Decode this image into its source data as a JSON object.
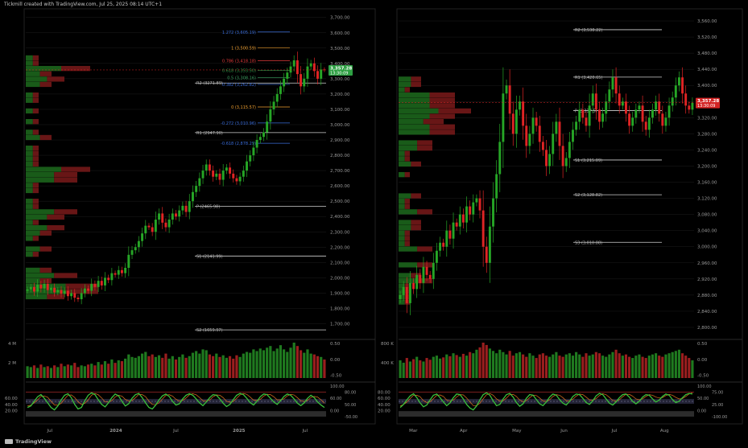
{
  "header": {
    "text": "Tickmill created with TradingView.com, Jul 25, 2025 08:14 UTC+1"
  },
  "footer": {
    "brand": "TradingView"
  },
  "colors": {
    "bg": "#000000",
    "up": "#26a626",
    "down": "#e02424",
    "grid": "#1c1c1c",
    "axis_text": "#9a9a9a"
  },
  "chart_data": [
    {
      "type": "candlestick",
      "timeframe": "weekly",
      "x_ticks": [
        "Jul",
        "2024",
        "Jul",
        "2025",
        "Jul"
      ],
      "price_ticks": [
        "3,700.00",
        "3,600.00",
        "3,500.00",
        "3,400.00",
        "3,300.00",
        "3,200.00",
        "3,100.00",
        "3,000.00",
        "2,900.00",
        "2,800.00",
        "2,700.00",
        "2,600.00",
        "2,500.00",
        "2,400.00",
        "2,300.00",
        "2,200.00",
        "2,100.00",
        "2,000.00",
        "1,900.00",
        "1,800.00",
        "1,700.00"
      ],
      "ylim": [
        1650,
        3730
      ],
      "last_price": {
        "value": "3,357.28",
        "countdown": "13:30:09"
      },
      "closes": [
        1925,
        1940,
        1910,
        1955,
        1930,
        1960,
        1920,
        1935,
        1905,
        1920,
        1895,
        1915,
        1880,
        1900,
        1870,
        1860,
        1900,
        1930,
        1915,
        1960,
        1940,
        1980,
        1950,
        2000,
        1985,
        2030,
        2020,
        2050,
        2030,
        2065,
        2150,
        2180,
        2200,
        2240,
        2290,
        2340,
        2330,
        2300,
        2380,
        2420,
        2360,
        2330,
        2380,
        2420,
        2400,
        2440,
        2470,
        2430,
        2500,
        2560,
        2600,
        2650,
        2700,
        2740,
        2700,
        2660,
        2680,
        2640,
        2700,
        2720,
        2680,
        2650,
        2630,
        2660,
        2700,
        2760,
        2800,
        2850,
        2900,
        2920,
        2950,
        3020,
        3100,
        3150,
        3200,
        3250,
        3300,
        3340,
        3380,
        3420,
        3330,
        3250,
        3300,
        3380,
        3400,
        3350,
        3300,
        3360,
        3357
      ],
      "pivots": [
        {
          "label": "R2 (3271.89)",
          "value": 3271.89
        },
        {
          "label": "R1 (2947.90)",
          "value": 2947.9
        },
        {
          "label": "P (2465.98)",
          "value": 2465.98
        },
        {
          "label": "S1 (2141.99)",
          "value": 2141.99
        },
        {
          "label": "S2 (1659.97)",
          "value": 1659.97
        }
      ],
      "fib_levels": [
        {
          "label": "1.272 (3,605.19)",
          "value": 3605.19,
          "color": "#3a6cd8"
        },
        {
          "label": "1 (3,500.59)",
          "value": 3500.59,
          "color": "#f0a030"
        },
        {
          "label": "0.786 (3,418.18)",
          "value": 3418.18,
          "color": "#e03a3a"
        },
        {
          "label": "0.618 (3,353.50)",
          "value": 3353.5,
          "color": "#2b9a4a"
        },
        {
          "label": "0.5 (3,308.16)",
          "value": 3308.16,
          "color": "#3aa060"
        },
        {
          "label": "0.382 (3,262.82)",
          "value": 3262.82,
          "color": "#3a6cd8"
        },
        {
          "label": "0 (3,115.57)",
          "value": 3115.57,
          "color": "#f0a030"
        },
        {
          "label": "-0.272 (3,010.96)",
          "value": 3010.96,
          "color": "#3a6cd8"
        },
        {
          "label": "-0.618 (2,878.29)",
          "value": 2878.29,
          "color": "#3a6cd8"
        }
      ],
      "volume_ticks": [
        "4 M",
        "2 M"
      ],
      "volume_right_ticks": [
        "0.50",
        "0.00",
        "-0.50"
      ],
      "volume": [
        1.4,
        1.3,
        1.5,
        1.2,
        1.6,
        1.3,
        1.4,
        1.2,
        1.5,
        1.3,
        1.7,
        1.4,
        1.6,
        1.5,
        1.8,
        1.3,
        1.5,
        1.4,
        1.6,
        1.7,
        1.5,
        1.9,
        1.6,
        2.0,
        1.7,
        2.2,
        1.8,
        2.1,
        2.0,
        2.3,
        2.8,
        2.5,
        2.4,
        2.6,
        2.9,
        3.1,
        2.6,
        2.8,
        2.5,
        2.7,
        2.4,
        2.9,
        2.3,
        2.6,
        2.2,
        2.5,
        2.8,
        2.4,
        2.6,
        3.0,
        3.2,
        2.9,
        3.4,
        3.3,
        2.8,
        2.6,
        2.9,
        2.5,
        2.7,
        2.4,
        2.6,
        2.3,
        2.7,
        2.5,
        2.9,
        3.1,
        3.0,
        3.4,
        3.2,
        3.5,
        3.3,
        3.6,
        3.8,
        3.2,
        3.5,
        3.9,
        3.4,
        3.1,
        3.6,
        4.2,
        3.8,
        3.3,
        3.0,
        3.4,
        2.9,
        2.8,
        2.6,
        2.5,
        2.2
      ],
      "osc_left_ticks": [
        "60.00",
        "40.00",
        "20.00"
      ],
      "osc_right_ticks": [
        "100.00",
        "80.00",
        "60.00",
        "50.00",
        "0.00",
        "-50.00"
      ],
      "osc": [
        30,
        35,
        50,
        65,
        72,
        60,
        45,
        30,
        22,
        35,
        55,
        70,
        75,
        62,
        40,
        25,
        30,
        52,
        70,
        78,
        72,
        55,
        40,
        32,
        45,
        62,
        74,
        68,
        50,
        35,
        42,
        60,
        72,
        76,
        62,
        45,
        30,
        25,
        38,
        55,
        68,
        74,
        66,
        50,
        38,
        42,
        58,
        70,
        75,
        70,
        58,
        45,
        36,
        48,
        62,
        72,
        70,
        58,
        44,
        33,
        40,
        56,
        70,
        76,
        72,
        60,
        46,
        38,
        50,
        65,
        74,
        72,
        60,
        48,
        40,
        52,
        66,
        74,
        70,
        58,
        44,
        36,
        45,
        60,
        70,
        62,
        48,
        38,
        30
      ]
    },
    {
      "type": "candlestick",
      "timeframe": "daily",
      "x_ticks": [
        "Mar",
        "Apr",
        "May",
        "Jun",
        "Jul",
        "Aug"
      ],
      "price_ticks": [
        "3,560.00",
        "3,520.00",
        "3,480.00",
        "3,440.00",
        "3,400.00",
        "3,360.00",
        "3,320.00",
        "3,280.00",
        "3,240.00",
        "3,200.00",
        "3,160.00",
        "3,120.00",
        "3,080.00",
        "3,040.00",
        "3,000.00",
        "2,960.00",
        "2,920.00",
        "2,880.00",
        "2,840.00",
        "2,800.00"
      ],
      "ylim": [
        2790,
        3580
      ],
      "last_price": {
        "value": "3,357.28",
        "countdown": "13:30:09"
      },
      "closes": [
        2880,
        2900,
        2860,
        2910,
        2895,
        2930,
        2910,
        2950,
        2930,
        2920,
        2960,
        2990,
        3010,
        3000,
        3040,
        3020,
        3060,
        3050,
        3080,
        3060,
        3100,
        3080,
        3110,
        3120,
        3090,
        3000,
        2960,
        3050,
        3120,
        3180,
        3260,
        3380,
        3400,
        3330,
        3280,
        3340,
        3360,
        3300,
        3250,
        3280,
        3320,
        3300,
        3260,
        3240,
        3200,
        3230,
        3280,
        3310,
        3250,
        3200,
        3220,
        3260,
        3290,
        3310,
        3340,
        3320,
        3300,
        3350,
        3380,
        3340,
        3310,
        3330,
        3360,
        3390,
        3420,
        3380,
        3350,
        3360,
        3330,
        3300,
        3320,
        3340,
        3350,
        3310,
        3290,
        3320,
        3340,
        3360,
        3330,
        3300,
        3320,
        3350,
        3370,
        3400,
        3420,
        3380,
        3350,
        3340,
        3357
      ],
      "pivots": [
        {
          "label": "R2 (3,538.22)",
          "value": 3538.22
        },
        {
          "label": "R1 (3,420.65)",
          "value": 3420.65
        },
        {
          "label": "P (3,337.5)",
          "value": 3337.5
        },
        {
          "label": "S1 (3,215.09)",
          "value": 3215.09
        },
        {
          "label": "S2 (3,128.82)",
          "value": 3128.82
        },
        {
          "label": "S3 (3,010.88)",
          "value": 3010.88
        }
      ],
      "volume_ticks": [
        "800 K",
        "400 K"
      ],
      "volume_right_ticks": [
        "0.50",
        "0.00",
        "-0.50"
      ],
      "volume": [
        300,
        260,
        340,
        280,
        320,
        360,
        300,
        280,
        340,
        310,
        360,
        380,
        330,
        350,
        400,
        370,
        420,
        390,
        360,
        410,
        380,
        440,
        420,
        480,
        520,
        600,
        560,
        500,
        460,
        420,
        480,
        440,
        400,
        460,
        380,
        420,
        440,
        400,
        360,
        420,
        380,
        340,
        400,
        420,
        380,
        360,
        400,
        440,
        380,
        360,
        400,
        420,
        380,
        440,
        400,
        360,
        420,
        380,
        400,
        440,
        420,
        380,
        360,
        400,
        440,
        480,
        420,
        380,
        400,
        360,
        340,
        380,
        400,
        360,
        340,
        380,
        400,
        420,
        380,
        360,
        400,
        420,
        440,
        460,
        480,
        420,
        380,
        340,
        300
      ],
      "osc_left_ticks": [
        "80.00",
        "60.00",
        "40.00",
        "20.00"
      ],
      "osc_right_ticks": [
        "100.00",
        "75.00",
        "50.00",
        "25.00",
        "0.00",
        "-100.00"
      ],
      "osc": [
        30,
        40,
        55,
        68,
        75,
        62,
        45,
        32,
        38,
        55,
        70,
        74,
        62,
        48,
        36,
        45,
        62,
        74,
        72,
        58,
        40,
        28,
        22,
        35,
        55,
        72,
        78,
        70,
        52,
        36,
        40,
        58,
        72,
        76,
        64,
        46,
        34,
        42,
        60,
        72,
        70,
        56,
        42,
        36,
        48,
        64,
        74,
        70,
        56,
        44,
        38,
        50,
        66,
        74,
        72,
        60,
        46,
        40,
        52,
        68,
        76,
        72,
        58,
        44,
        38,
        48,
        62,
        72,
        74,
        64,
        50,
        42,
        50,
        64,
        72,
        70,
        58,
        48,
        54,
        66,
        74,
        70,
        56,
        46,
        50,
        62,
        72,
        76,
        74
      ]
    }
  ]
}
